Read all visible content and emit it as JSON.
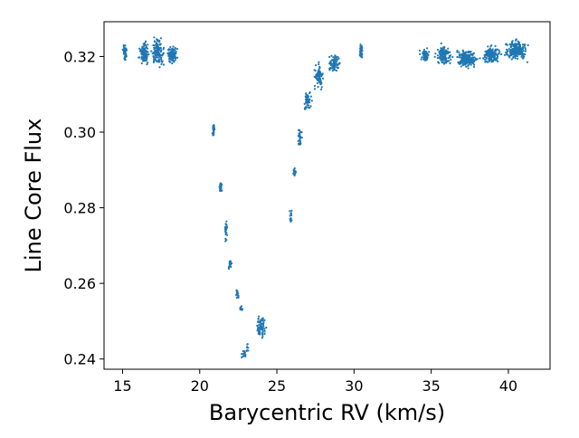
{
  "chart_data": {
    "type": "scatter",
    "title": "",
    "xlabel": "Barycentric RV (km/s)",
    "ylabel": "Line Core Flux",
    "xlim": [
      13.8,
      42.7
    ],
    "ylim": [
      0.2373,
      0.3292
    ],
    "grid": false,
    "legend": "none",
    "xticks": [
      15,
      20,
      25,
      30,
      35,
      40
    ],
    "xtick_labels": [
      "15",
      "20",
      "25",
      "30",
      "35",
      "40"
    ],
    "yticks": [
      0.24,
      0.26,
      0.28,
      0.3,
      0.32
    ],
    "ytick_labels": [
      "0.24",
      "0.26",
      "0.28",
      "0.30",
      "0.32"
    ],
    "marker_color": "#1f77b4",
    "series": [
      {
        "clusters": [
          {
            "x": [
              15.0,
              15.3
            ],
            "y": [
              0.3185,
              0.3235
            ],
            "n": 55
          },
          {
            "x": [
              16.0,
              16.8
            ],
            "y": [
              0.3175,
              0.3245
            ],
            "n": 95
          },
          {
            "x": [
              16.8,
              17.8
            ],
            "y": [
              0.3165,
              0.3255
            ],
            "n": 130
          },
          {
            "x": [
              17.8,
              18.6
            ],
            "y": [
              0.317,
              0.3235
            ],
            "n": 90
          },
          {
            "x": [
              20.8,
              21.0
            ],
            "y": [
              0.2985,
              0.3025
            ],
            "n": 22
          },
          {
            "x": [
              21.2,
              21.5
            ],
            "y": [
              0.2835,
              0.2875
            ],
            "n": 22
          },
          {
            "x": [
              21.6,
              21.8
            ],
            "y": [
              0.2705,
              0.2775
            ],
            "n": 26
          },
          {
            "x": [
              21.8,
              22.1
            ],
            "y": [
              0.263,
              0.267
            ],
            "n": 18
          },
          {
            "x": [
              22.3,
              22.6
            ],
            "y": [
              0.2555,
              0.259
            ],
            "n": 20
          },
          {
            "x": [
              22.6,
              22.8
            ],
            "y": [
              0.2525,
              0.2545
            ],
            "n": 10
          },
          {
            "x": [
              22.7,
              23.0
            ],
            "y": [
              0.2395,
              0.243
            ],
            "n": 14
          },
          {
            "x": [
              23.0,
              23.2
            ],
            "y": [
              0.241,
              0.245
            ],
            "n": 10
          },
          {
            "x": [
              23.6,
              24.4
            ],
            "y": [
              0.244,
              0.253
            ],
            "n": 70
          },
          {
            "x": [
              25.8,
              26.0
            ],
            "y": [
              0.2745,
              0.2805
            ],
            "n": 16
          },
          {
            "x": [
              26.0,
              26.3
            ],
            "y": [
              0.2875,
              0.291
            ],
            "n": 16
          },
          {
            "x": [
              26.3,
              26.7
            ],
            "y": [
              0.295,
              0.302
            ],
            "n": 28
          },
          {
            "x": [
              26.7,
              27.3
            ],
            "y": [
              0.305,
              0.312
            ],
            "n": 55
          },
          {
            "x": [
              27.3,
              28.1
            ],
            "y": [
              0.311,
              0.3185
            ],
            "n": 85
          },
          {
            "x": [
              28.3,
              29.2
            ],
            "y": [
              0.3155,
              0.321
            ],
            "n": 75
          },
          {
            "x": [
              30.3,
              30.6
            ],
            "y": [
              0.319,
              0.324
            ],
            "n": 30
          },
          {
            "x": [
              34.2,
              35.0
            ],
            "y": [
              0.318,
              0.3225
            ],
            "n": 55
          },
          {
            "x": [
              35.2,
              36.4
            ],
            "y": [
              0.317,
              0.3235
            ],
            "n": 120
          },
          {
            "x": [
              36.4,
              38.2
            ],
            "y": [
              0.3165,
              0.3225
            ],
            "n": 190
          },
          {
            "x": [
              38.2,
              39.6
            ],
            "y": [
              0.3175,
              0.3235
            ],
            "n": 140
          },
          {
            "x": [
              39.6,
              41.4
            ],
            "y": [
              0.3185,
              0.325
            ],
            "n": 190
          }
        ]
      }
    ]
  }
}
